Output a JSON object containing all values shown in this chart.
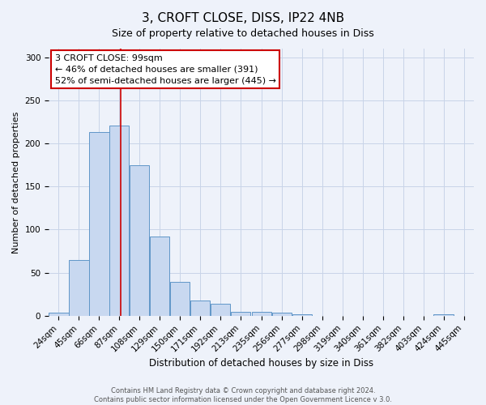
{
  "title": "3, CROFT CLOSE, DISS, IP22 4NB",
  "subtitle": "Size of property relative to detached houses in Diss",
  "xlabel": "Distribution of detached houses by size in Diss",
  "ylabel": "Number of detached properties",
  "bin_labels": [
    "24sqm",
    "45sqm",
    "66sqm",
    "87sqm",
    "108sqm",
    "129sqm",
    "150sqm",
    "171sqm",
    "192sqm",
    "213sqm",
    "235sqm",
    "256sqm",
    "277sqm",
    "298sqm",
    "319sqm",
    "340sqm",
    "361sqm",
    "382sqm",
    "403sqm",
    "424sqm",
    "445sqm"
  ],
  "bin_starts": [
    24,
    45,
    66,
    87,
    108,
    129,
    150,
    171,
    192,
    213,
    235,
    256,
    277,
    298,
    319,
    340,
    361,
    382,
    403,
    424,
    445
  ],
  "bar_heights": [
    4,
    65,
    213,
    221,
    175,
    92,
    39,
    18,
    14,
    5,
    5,
    4,
    2,
    0,
    0,
    0,
    0,
    0,
    0,
    2,
    0
  ],
  "bar_color": "#c8d8f0",
  "bar_edge_color": "#6096c8",
  "property_size": 99,
  "vline_color": "#cc0000",
  "annotation_line1": "3 CROFT CLOSE: 99sqm",
  "annotation_line2": "← 46% of detached houses are smaller (391)",
  "annotation_line3": "52% of semi-detached houses are larger (445) →",
  "annotation_box_facecolor": "#ffffff",
  "annotation_box_edgecolor": "#cc0000",
  "ylim": [
    0,
    310
  ],
  "yticks": [
    0,
    50,
    100,
    150,
    200,
    250,
    300
  ],
  "grid_color": "#c8d4e8",
  "background_color": "#eef2fa",
  "footer_line1": "Contains HM Land Registry data © Crown copyright and database right 2024.",
  "footer_line2": "Contains public sector information licensed under the Open Government Licence v 3.0.",
  "title_fontsize": 11,
  "subtitle_fontsize": 9,
  "xlabel_fontsize": 8.5,
  "ylabel_fontsize": 8,
  "tick_fontsize": 7.5,
  "annotation_fontsize": 8,
  "footer_fontsize": 6
}
